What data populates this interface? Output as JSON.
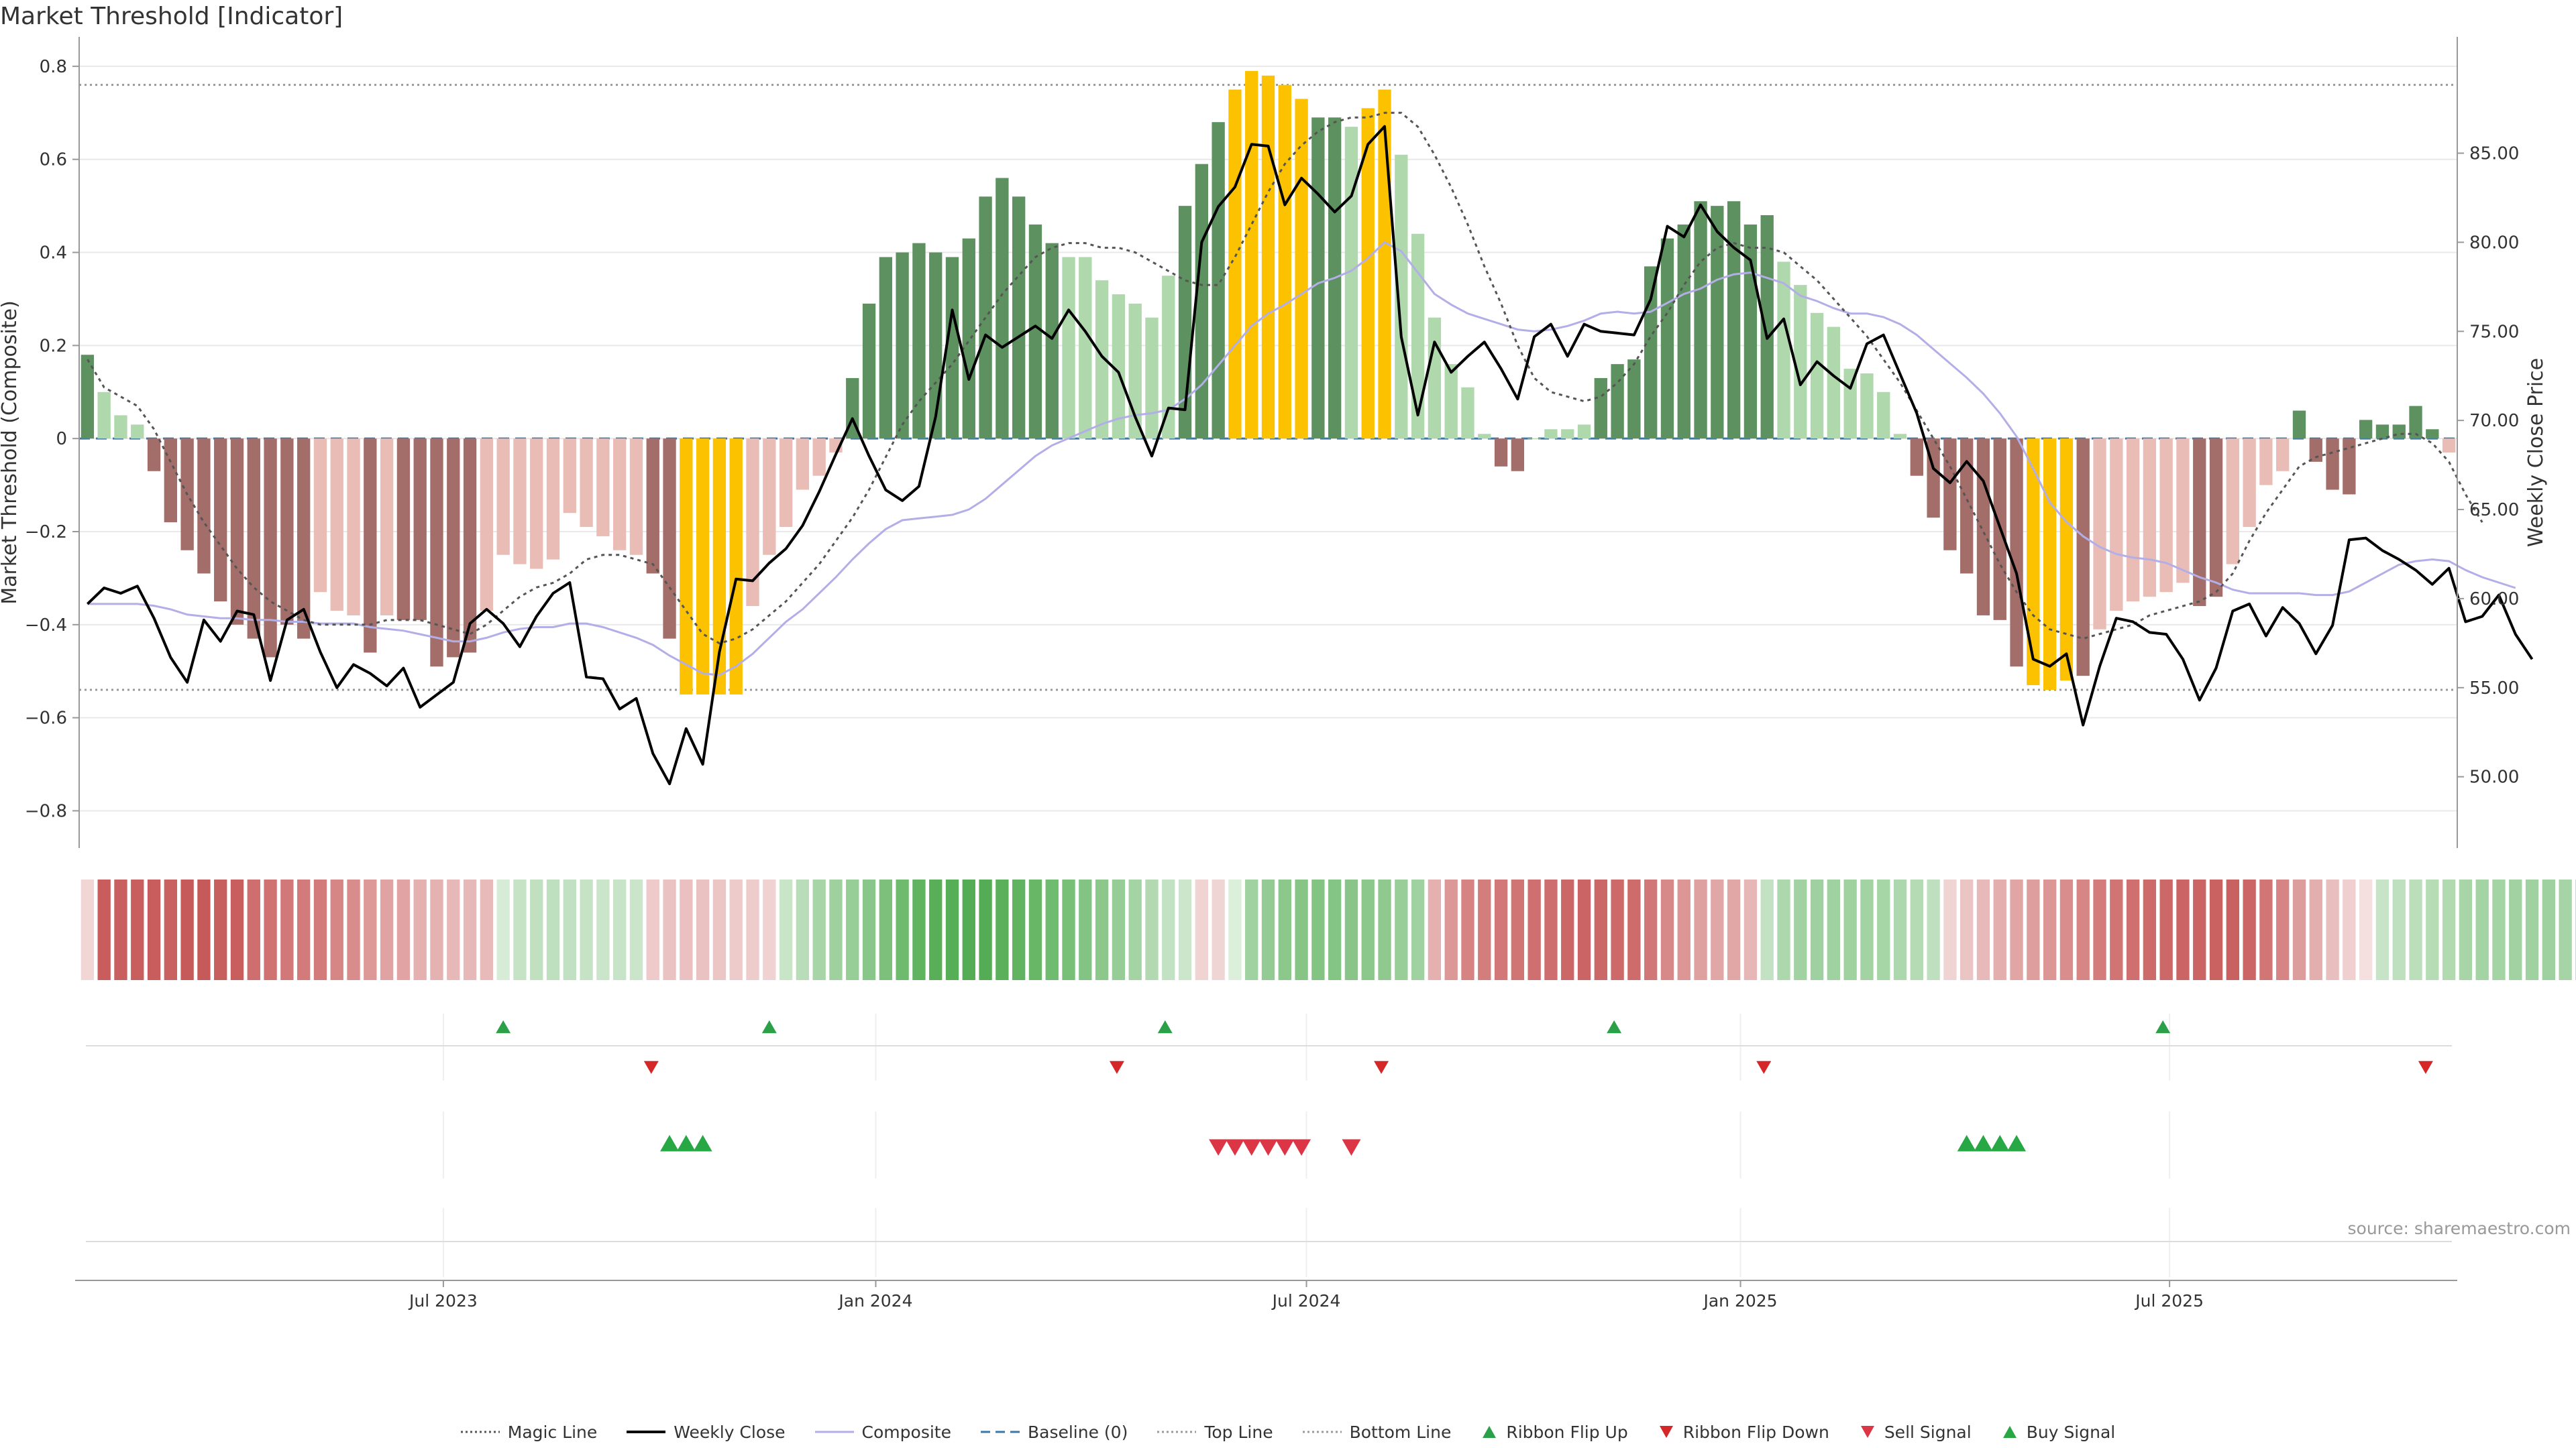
{
  "title": "Market Threshold [Indicator]",
  "source": "source: sharemaestro.com",
  "legend": [
    {
      "label": "Magic Line",
      "kind": "line",
      "color": "#555555",
      "dash": "3,4",
      "width": 3
    },
    {
      "label": "Weekly Close",
      "kind": "line",
      "color": "#000000",
      "dash": "",
      "width": 4
    },
    {
      "label": "Composite",
      "kind": "line",
      "color": "#b3aee8",
      "dash": "",
      "width": 3
    },
    {
      "label": "Baseline (0)",
      "kind": "line",
      "color": "#3b78a8",
      "dash": "14,8",
      "width": 3
    },
    {
      "label": "Top Line",
      "kind": "line",
      "color": "#999999",
      "dash": "3,4",
      "width": 3
    },
    {
      "label": "Bottom Line",
      "kind": "line",
      "color": "#999999",
      "dash": "3,4",
      "width": 3
    },
    {
      "label": "Ribbon Flip Up",
      "kind": "tri-up",
      "color": "#2ca048"
    },
    {
      "label": "Ribbon Flip Down",
      "kind": "tri-down",
      "color": "#d62728"
    },
    {
      "label": "Sell Signal",
      "kind": "tri-down",
      "color": "#dc3545"
    },
    {
      "label": "Buy Signal",
      "kind": "tri-up",
      "color": "#28a745"
    }
  ],
  "colors": {
    "bar_pos_strong": "#5e9160",
    "bar_pos_weak": "#afd8ad",
    "bar_neg_strong": "#a36e69",
    "bar_neg_weak": "#eabcb6",
    "bar_extreme": "#fcc200",
    "grid": "#e9e9e9",
    "axis": "#999999"
  },
  "chart_data": {
    "type": "bar",
    "ylabel_left": "Market Threshold (Composite)",
    "ylabel_right": "Weekly Close Price",
    "ylim_left": [
      -0.88,
      0.82
    ],
    "ylim_right": [
      46.0,
      90.4
    ],
    "yticks_left": [
      "0.8",
      "0.6",
      "0.4",
      "0.2",
      "0",
      "−0.2",
      "−0.4",
      "−0.6",
      "−0.8"
    ],
    "yticks_right": [
      "85.00",
      "80.00",
      "75.00",
      "70.00",
      "65.00",
      "60.00",
      "55.00",
      "50.00"
    ],
    "xticks": [
      "Jul 2023",
      "Jan 2024",
      "Jul 2024",
      "Jan 2025",
      "Jul 2025"
    ],
    "xtick_weeks": [
      21.4,
      47.4,
      73.3,
      99.4,
      125.2
    ],
    "n_weeks": 143,
    "top_line": 0.76,
    "bottom_line": -0.54,
    "baseline": 0,
    "composite": [
      0.18,
      0.1,
      0.05,
      0.03,
      -0.07,
      -0.18,
      -0.24,
      -0.29,
      -0.35,
      -0.4,
      -0.43,
      -0.47,
      -0.4,
      -0.43,
      -0.33,
      -0.37,
      -0.38,
      -0.46,
      -0.38,
      -0.39,
      -0.39,
      -0.49,
      -0.47,
      -0.46,
      -0.37,
      -0.25,
      -0.27,
      -0.28,
      -0.26,
      -0.16,
      -0.19,
      -0.21,
      -0.24,
      -0.25,
      -0.29,
      -0.43,
      -0.55,
      -0.55,
      -0.55,
      -0.55,
      -0.36,
      -0.25,
      -0.19,
      -0.11,
      -0.08,
      -0.03,
      0.13,
      0.29,
      0.39,
      0.4,
      0.42,
      0.4,
      0.39,
      0.43,
      0.52,
      0.56,
      0.52,
      0.46,
      0.42,
      0.39,
      0.39,
      0.34,
      0.31,
      0.29,
      0.26,
      0.35,
      0.5,
      0.59,
      0.68,
      0.75,
      0.79,
      0.78,
      0.76,
      0.73,
      0.69,
      0.69,
      0.67,
      0.71,
      0.75,
      0.61,
      0.44,
      0.26,
      0.16,
      0.11,
      0.01,
      -0.06,
      -0.07,
      0.0,
      0.02,
      0.02,
      0.03,
      0.13,
      0.16,
      0.17,
      0.37,
      0.43,
      0.46,
      0.51,
      0.5,
      0.51,
      0.46,
      0.48,
      0.38,
      0.33,
      0.27,
      0.24,
      0.15,
      0.14,
      0.1,
      0.01,
      -0.08,
      -0.17,
      -0.24,
      -0.29,
      -0.38,
      -0.39,
      -0.49,
      -0.53,
      -0.54,
      -0.52,
      -0.51,
      -0.41,
      -0.37,
      -0.35,
      -0.34,
      -0.33,
      -0.31,
      -0.36,
      -0.34,
      -0.27,
      -0.19,
      -0.1,
      -0.07,
      0.06,
      -0.05,
      -0.11,
      -0.12,
      0.04,
      0.03,
      0.03,
      0.07,
      0.02,
      -0.03
    ],
    "weekly_close": [
      59.7,
      60.6,
      60.3,
      60.7,
      58.9,
      56.7,
      55.3,
      58.8,
      57.6,
      59.3,
      59.1,
      55.4,
      58.8,
      59.4,
      57.0,
      55.0,
      56.3,
      55.8,
      55.1,
      56.1,
      53.9,
      54.6,
      55.3,
      58.6,
      59.4,
      58.6,
      57.3,
      59.0,
      60.3,
      60.9,
      55.6,
      55.5,
      53.8,
      54.4,
      51.3,
      49.6,
      52.7,
      50.7,
      57.0,
      61.1,
      61.0,
      62.0,
      62.8,
      64.1,
      66.0,
      68.1,
      70.1,
      68.0,
      66.1,
      65.5,
      66.3,
      70.2,
      76.2,
      72.3,
      74.8,
      74.1,
      74.7,
      75.3,
      74.6,
      76.2,
      75.0,
      73.6,
      72.7,
      70.2,
      68.0,
      70.7,
      70.6,
      80.0,
      82.0,
      83.1,
      85.5,
      85.4,
      82.1,
      83.6,
      82.7,
      81.7,
      82.6,
      85.5,
      86.5,
      74.7,
      70.3,
      74.4,
      72.7,
      73.6,
      74.4,
      72.9,
      71.2,
      74.7,
      75.4,
      73.6,
      75.4,
      75.0,
      74.9,
      74.8,
      76.8,
      80.9,
      80.3,
      82.1,
      80.6,
      79.7,
      79.0,
      74.6,
      75.7,
      72.0,
      73.3,
      72.5,
      71.8,
      74.3,
      74.8,
      72.6,
      70.4,
      67.3,
      66.5,
      67.7,
      66.6,
      64.0,
      61.4,
      56.6,
      56.2,
      56.9,
      52.9,
      56.2,
      58.9,
      58.7,
      58.1,
      58.0,
      56.6,
      54.3,
      56.1,
      59.3,
      59.7,
      57.9,
      59.5,
      58.6,
      56.9,
      58.5,
      63.3,
      63.4,
      62.7,
      62.2,
      61.6,
      60.8,
      61.7,
      58.7,
      59.0,
      60.2,
      58.0,
      56.6
    ],
    "magic_line": [
      0.17,
      0.11,
      0.09,
      0.07,
      0.02,
      -0.05,
      -0.12,
      -0.18,
      -0.23,
      -0.28,
      -0.32,
      -0.35,
      -0.37,
      -0.39,
      -0.4,
      -0.4,
      -0.4,
      -0.4,
      -0.39,
      -0.39,
      -0.39,
      -0.4,
      -0.41,
      -0.42,
      -0.4,
      -0.37,
      -0.34,
      -0.32,
      -0.31,
      -0.29,
      -0.26,
      -0.25,
      -0.25,
      -0.26,
      -0.27,
      -0.32,
      -0.37,
      -0.42,
      -0.44,
      -0.43,
      -0.41,
      -0.38,
      -0.35,
      -0.31,
      -0.27,
      -0.22,
      -0.17,
      -0.11,
      -0.04,
      0.03,
      0.08,
      0.12,
      0.16,
      0.21,
      0.26,
      0.31,
      0.35,
      0.39,
      0.41,
      0.42,
      0.42,
      0.41,
      0.41,
      0.4,
      0.38,
      0.36,
      0.34,
      0.33,
      0.33,
      0.39,
      0.46,
      0.53,
      0.59,
      0.63,
      0.66,
      0.68,
      0.69,
      0.69,
      0.7,
      0.7,
      0.67,
      0.61,
      0.54,
      0.46,
      0.37,
      0.29,
      0.2,
      0.13,
      0.1,
      0.09,
      0.08,
      0.09,
      0.12,
      0.16,
      0.22,
      0.27,
      0.33,
      0.38,
      0.41,
      0.42,
      0.41,
      0.41,
      0.4,
      0.37,
      0.34,
      0.3,
      0.26,
      0.22,
      0.17,
      0.12,
      0.06,
      0.0,
      -0.06,
      -0.13,
      -0.2,
      -0.27,
      -0.33,
      -0.38,
      -0.41,
      -0.42,
      -0.43,
      -0.42,
      -0.41,
      -0.4,
      -0.38,
      -0.37,
      -0.36,
      -0.35,
      -0.33,
      -0.29,
      -0.22,
      -0.16,
      -0.11,
      -0.06,
      -0.04,
      -0.03,
      -0.02,
      -0.01,
      0.0,
      0.01,
      0.01,
      -0.01,
      -0.05,
      -0.12,
      -0.18
    ],
    "composite_line": [
      59.7,
      59.7,
      59.7,
      59.7,
      59.6,
      59.4,
      59.1,
      59.0,
      58.9,
      58.9,
      58.8,
      58.8,
      58.7,
      58.7,
      58.6,
      58.6,
      58.6,
      58.4,
      58.3,
      58.2,
      58.0,
      57.8,
      57.6,
      57.6,
      57.8,
      58.1,
      58.3,
      58.4,
      58.4,
      58.6,
      58.6,
      58.4,
      58.1,
      57.8,
      57.4,
      56.8,
      56.3,
      55.8,
      55.7,
      56.2,
      56.9,
      57.8,
      58.7,
      59.4,
      60.3,
      61.2,
      62.2,
      63.1,
      63.9,
      64.4,
      64.5,
      64.6,
      64.7,
      65.0,
      65.6,
      66.4,
      67.2,
      68.0,
      68.6,
      69.0,
      69.4,
      69.8,
      70.1,
      70.3,
      70.4,
      70.6,
      71.2,
      72.0,
      73.1,
      74.2,
      75.3,
      76.0,
      76.5,
      77.1,
      77.7,
      78.0,
      78.4,
      79.1,
      80.0,
      79.5,
      78.3,
      77.1,
      76.5,
      76.0,
      75.7,
      75.4,
      75.1,
      75.0,
      75.1,
      75.3,
      75.6,
      76.0,
      76.1,
      76.0,
      76.1,
      76.6,
      77.1,
      77.4,
      77.9,
      78.2,
      78.3,
      78.0,
      77.7,
      77.0,
      76.7,
      76.3,
      76.0,
      76.0,
      75.8,
      75.4,
      74.8,
      74.0,
      73.2,
      72.4,
      71.5,
      70.4,
      69.1,
      67.3,
      65.4,
      64.3,
      63.5,
      62.9,
      62.5,
      62.3,
      62.2,
      62.0,
      61.6,
      61.2,
      60.9,
      60.5,
      60.3,
      60.3,
      60.3,
      60.3,
      60.2,
      60.2,
      60.4,
      60.9,
      61.4,
      61.9,
      62.1,
      62.2,
      62.1,
      61.6,
      61.2,
      60.9,
      60.6
    ]
  },
  "ribbon": {
    "colors": [
      "#f2d6d6",
      "#c95d5d",
      "#c96060",
      "#c95e5e",
      "#c95d5d",
      "#c96161",
      "#c65a5a",
      "#c65a5a",
      "#c85f5f",
      "#c95e5e",
      "#cf6e6e",
      "#d07272",
      "#d27878",
      "#d37a7a",
      "#d37b7b",
      "#d78686",
      "#d98c8c",
      "#dd9898",
      "#e0a2a2",
      "#e1a3a3",
      "#e5b0b0",
      "#e5b2b2",
      "#e7b8b8",
      "#e7b8b8",
      "#e8baba",
      "#d7ecd7",
      "#c6e3c6",
      "#c0e0c0",
      "#bfe0bf",
      "#c2e1c2",
      "#c6e3c6",
      "#cae5ca",
      "#c8e4c8",
      "#cae5ca",
      "#eecaca",
      "#ebc2c2",
      "#eac0c0",
      "#ebc2c2",
      "#ecc5c5",
      "#eecbcb",
      "#efcccc",
      "#f0d2d2",
      "#c8e5c8",
      "#b9ddb9",
      "#a7d5a7",
      "#9fd19f",
      "#97cd97",
      "#89c689",
      "#7cc07c",
      "#6ebb6e",
      "#60b460",
      "#58af58",
      "#56ae56",
      "#54ac54",
      "#54ac54",
      "#5bb15b",
      "#60b360",
      "#67b767",
      "#6fbb6f",
      "#78bf78",
      "#83c383",
      "#8cc88c",
      "#96cc96",
      "#a4d3a4",
      "#b2d9b2",
      "#c3e2c3",
      "#cbe6cb",
      "#f0d4d4",
      "#f0d5d5",
      "#dbefdb",
      "#a0d1a0",
      "#94cb94",
      "#8cc78c",
      "#86c586",
      "#83c483",
      "#84c484",
      "#89c589",
      "#8cc88c",
      "#8fc98f",
      "#99ce99",
      "#a0d1a0",
      "#e4b0b0",
      "#dc9797",
      "#d68383",
      "#d47d7d",
      "#d27878",
      "#d07474",
      "#cf6f6f",
      "#ce6e6e",
      "#cc6767",
      "#cb6565",
      "#cb6767",
      "#cd6969",
      "#ce6c6c",
      "#d27777",
      "#d78989",
      "#dc9696",
      "#dfa0a0",
      "#e1a6a6",
      "#e1a6a6",
      "#e7b7b7",
      "#c3e2c3",
      "#add8ad",
      "#a2d2a2",
      "#9fd1a0",
      "#a0d1a0",
      "#a0d2a0",
      "#a3d3a3",
      "#a6d5a6",
      "#add8ad",
      "#b4dbb4",
      "#bee0be",
      "#f0d4d4",
      "#ebc4c4",
      "#e7b9b9",
      "#e4aeae",
      "#e1a5a5",
      "#df9e9e",
      "#dc9696",
      "#d98d8d",
      "#d78686",
      "#d47c7c",
      "#d17474",
      "#cf6f6f",
      "#cd6a6a",
      "#cc6868",
      "#cb6565",
      "#cb6464",
      "#ca6262",
      "#ca6161",
      "#cc6666",
      "#d17575",
      "#d68484",
      "#de9d9d",
      "#e3aeae",
      "#e9bebe",
      "#efcfcf",
      "#f5dfdf",
      "#c8e4c8",
      "#bfe0bf",
      "#bbdebb",
      "#b6dcb6",
      "#b1dab1",
      "#a7d5a7",
      "#a4d3a4",
      "#a4d4a4",
      "#a2d2a2",
      "#a0d1a0",
      "#9fd1a0",
      "#a6d4a6",
      "#acd7ac",
      "#b2d9b2",
      "#b8dcb8",
      "#c1e1c1",
      "#eac0c0",
      "#e8baba"
    ]
  },
  "ribbon_flip_up_weeks": [
    25.0,
    41.0,
    64.8,
    91.8,
    124.8
  ],
  "ribbon_flip_down_weeks": [
    33.9,
    61.9,
    77.8,
    100.8,
    140.6
  ],
  "buy_signal_weeks": [
    35.0,
    36.0,
    37.0,
    113.0,
    114.0,
    115.0,
    116.0
  ],
  "sell_signal_weeks": [
    68.0,
    69.0,
    70.0,
    71.0,
    72.0,
    73.0,
    76.0
  ]
}
